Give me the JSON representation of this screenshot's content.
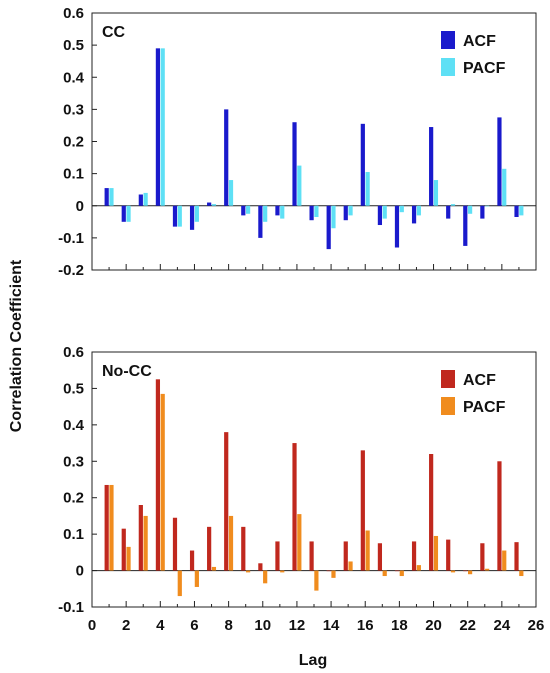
{
  "shared": {
    "ylabel": "Correlation Coefficient",
    "xlabel": "Lag"
  },
  "chart_data": [
    {
      "type": "bar",
      "title": "CC",
      "xlabel": "",
      "ylabel": "Correlation Coefficient",
      "ylim": [
        -0.2,
        0.6
      ],
      "yticks": [
        -0.2,
        -0.1,
        0,
        0.1,
        0.2,
        0.3,
        0.4,
        0.5,
        0.6
      ],
      "yticklabels": [
        "-0.2",
        "-0.1",
        "0",
        "0.1",
        "0.2",
        "0.3",
        "0.4",
        "0.5",
        "0.6"
      ],
      "xlim": [
        0,
        26
      ],
      "xticks": [
        0,
        2,
        4,
        6,
        8,
        10,
        12,
        14,
        16,
        18,
        20,
        22,
        24,
        26
      ],
      "show_xticklabels": false,
      "legend_position": "top-right",
      "grid": false,
      "colors": {
        "ACF": "#1a1acc",
        "PACF": "#5ee0f5"
      },
      "categories": [
        1,
        2,
        3,
        4,
        5,
        6,
        7,
        8,
        9,
        10,
        11,
        12,
        13,
        14,
        15,
        16,
        17,
        18,
        19,
        20,
        21,
        22,
        23,
        24,
        25
      ],
      "series": [
        {
          "name": "ACF",
          "values": [
            0.055,
            -0.05,
            0.035,
            0.49,
            -0.065,
            -0.075,
            0.01,
            0.3,
            -0.03,
            -0.1,
            -0.03,
            0.26,
            -0.045,
            -0.135,
            -0.045,
            0.255,
            -0.06,
            -0.13,
            -0.055,
            0.245,
            -0.04,
            -0.125,
            -0.04,
            0.275,
            -0.035
          ]
        },
        {
          "name": "PACF",
          "values": [
            0.055,
            -0.05,
            0.04,
            0.49,
            -0.065,
            -0.05,
            0.005,
            0.08,
            -0.025,
            -0.05,
            -0.04,
            0.125,
            -0.035,
            -0.07,
            -0.03,
            0.105,
            -0.04,
            -0.02,
            -0.03,
            0.08,
            0.005,
            -0.025,
            0.0,
            0.115,
            -0.03
          ]
        }
      ]
    },
    {
      "type": "bar",
      "title": "No-CC",
      "xlabel": "Lag",
      "ylabel": "Correlation Coefficient",
      "ylim": [
        -0.1,
        0.6
      ],
      "yticks": [
        -0.1,
        0,
        0.1,
        0.2,
        0.3,
        0.4,
        0.5,
        0.6
      ],
      "yticklabels": [
        "-0.1",
        "0",
        "0.1",
        "0.2",
        "0.3",
        "0.4",
        "0.5",
        "0.6"
      ],
      "xlim": [
        0,
        26
      ],
      "xticks": [
        0,
        2,
        4,
        6,
        8,
        10,
        12,
        14,
        16,
        18,
        20,
        22,
        24,
        26
      ],
      "xticklabels": [
        "0",
        "2",
        "4",
        "6",
        "8",
        "10",
        "12",
        "14",
        "16",
        "18",
        "20",
        "22",
        "24",
        "26"
      ],
      "show_xticklabels": true,
      "legend_position": "top-right",
      "grid": false,
      "colors": {
        "ACF": "#c0281e",
        "PACF": "#f08c1e"
      },
      "categories": [
        1,
        2,
        3,
        4,
        5,
        6,
        7,
        8,
        9,
        10,
        11,
        12,
        13,
        14,
        15,
        16,
        17,
        18,
        19,
        20,
        21,
        22,
        23,
        24,
        25
      ],
      "series": [
        {
          "name": "ACF",
          "values": [
            0.235,
            0.115,
            0.18,
            0.525,
            0.145,
            0.055,
            0.12,
            0.38,
            0.12,
            0.02,
            0.08,
            0.35,
            0.08,
            0.0,
            0.08,
            0.33,
            0.075,
            0.0,
            0.08,
            0.32,
            0.085,
            0.0,
            0.075,
            0.3,
            0.078
          ]
        },
        {
          "name": "PACF",
          "values": [
            0.235,
            0.065,
            0.15,
            0.485,
            -0.07,
            -0.045,
            0.01,
            0.15,
            -0.005,
            -0.035,
            -0.005,
            0.155,
            -0.055,
            -0.02,
            0.025,
            0.11,
            -0.015,
            -0.015,
            0.015,
            0.095,
            -0.005,
            -0.01,
            0.005,
            0.055,
            -0.015
          ]
        }
      ]
    }
  ]
}
